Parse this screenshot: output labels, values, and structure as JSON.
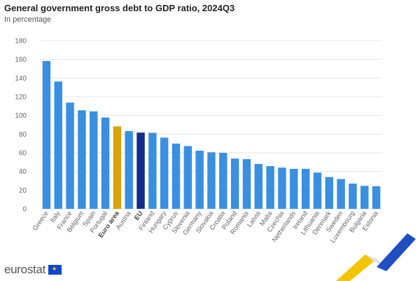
{
  "title": "General government gross debt to GDP ratio, 2024Q3",
  "subtitle": "In percentage",
  "footer": {
    "logo_text": "eurostat"
  },
  "colors": {
    "default": "#3a8fe0",
    "euro_area": "#d7a20a",
    "eu": "#112e8c",
    "grid": "#e4e4e4"
  },
  "chart_data": {
    "type": "bar",
    "title": "General government gross debt to GDP ratio, 2024Q3",
    "subtitle": "In percentage",
    "xlabel": "",
    "ylabel": "",
    "ylim": [
      0,
      180
    ],
    "yticks": [
      0,
      20,
      40,
      60,
      80,
      100,
      120,
      140,
      160,
      180
    ],
    "grid": true,
    "categories": [
      "Greece",
      "Italy",
      "France",
      "Belgium",
      "Spain",
      "Portugal",
      "Euro area",
      "Austria",
      "EU",
      "Finland",
      "Hungary",
      "Cyprus",
      "Slovenia",
      "Germany",
      "Slovakia",
      "Croatia",
      "Poland",
      "Romania",
      "Latvia",
      "Malta",
      "Czechia",
      "Netherlands",
      "Ireland",
      "Lithuania",
      "Denmark",
      "Sweden",
      "Luxembourg",
      "Bulgaria",
      "Estonia"
    ],
    "values": [
      158.2,
      136.3,
      113.7,
      105.5,
      104.3,
      97.7,
      88.2,
      83.2,
      81.6,
      81.4,
      76.2,
      69.8,
      67.2,
      62.2,
      60.5,
      59.9,
      53.8,
      53.2,
      48.0,
      45.7,
      44.1,
      42.8,
      42.8,
      38.8,
      34.0,
      31.9,
      27.0,
      24.6,
      24.2
    ],
    "highlight": {
      "Euro area": "euro_area",
      "EU": "eu"
    }
  }
}
